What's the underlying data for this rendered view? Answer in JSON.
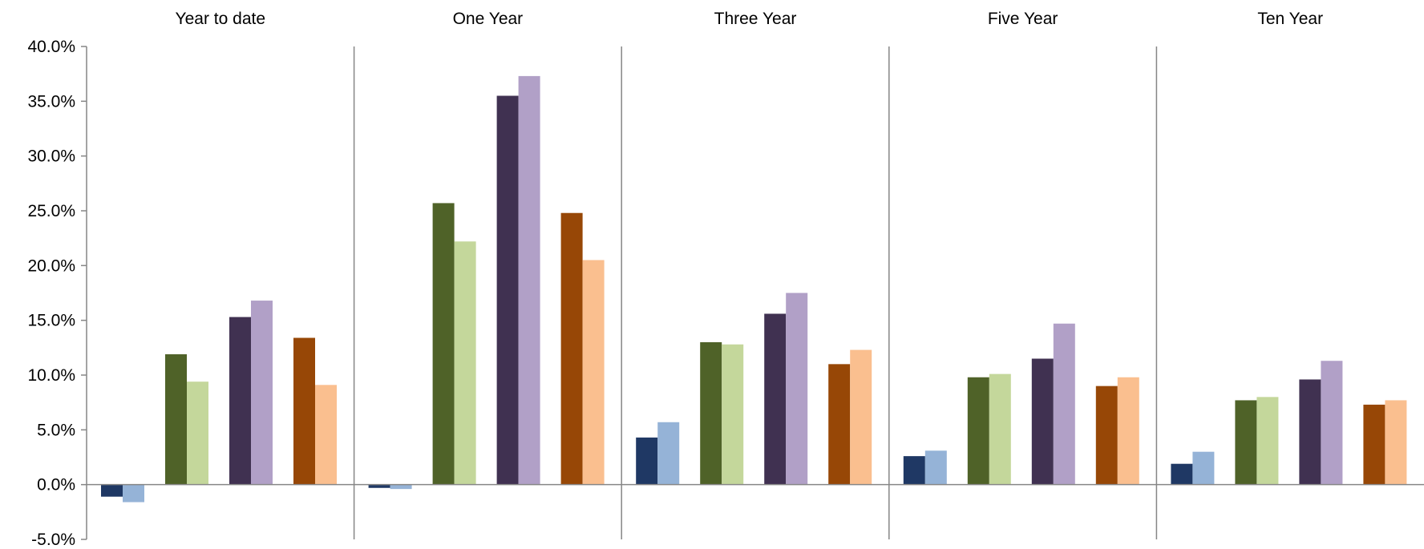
{
  "chart_data": {
    "type": "bar",
    "title": "",
    "xlabel": "",
    "ylabel": "",
    "ylim": [
      -5,
      40
    ],
    "yticks": [
      -5,
      0,
      5,
      10,
      15,
      20,
      25,
      30,
      35,
      40
    ],
    "ytick_labels": [
      "-5.0%",
      "0.0%",
      "5.0%",
      "10.0%",
      "15.0%",
      "20.0%",
      "25.0%",
      "30.0%",
      "35.0%",
      "40.0%"
    ],
    "legend": "none",
    "grid": false,
    "panels": [
      {
        "title": "Year to date",
        "values": [
          -1.1,
          -1.6,
          11.9,
          9.4,
          15.3,
          16.8,
          13.4,
          9.1
        ]
      },
      {
        "title": "One Year",
        "values": [
          -0.3,
          -0.4,
          25.7,
          22.2,
          35.5,
          37.3,
          24.8,
          20.5
        ]
      },
      {
        "title": "Three Year",
        "values": [
          4.3,
          5.7,
          13.0,
          12.8,
          15.6,
          17.5,
          11.0,
          12.3
        ]
      },
      {
        "title": "Five Year",
        "values": [
          2.6,
          3.1,
          9.8,
          10.1,
          11.5,
          14.7,
          9.0,
          9.8
        ]
      },
      {
        "title": "Ten Year",
        "values": [
          1.9,
          3.0,
          7.7,
          8.0,
          9.6,
          11.3,
          7.3,
          7.7
        ]
      }
    ],
    "bar_colors": [
      "#1f3864",
      "#95b3d7",
      "#4f6228",
      "#c4d79b",
      "#403151",
      "#b1a0c7",
      "#974706",
      "#fabf8f"
    ]
  }
}
